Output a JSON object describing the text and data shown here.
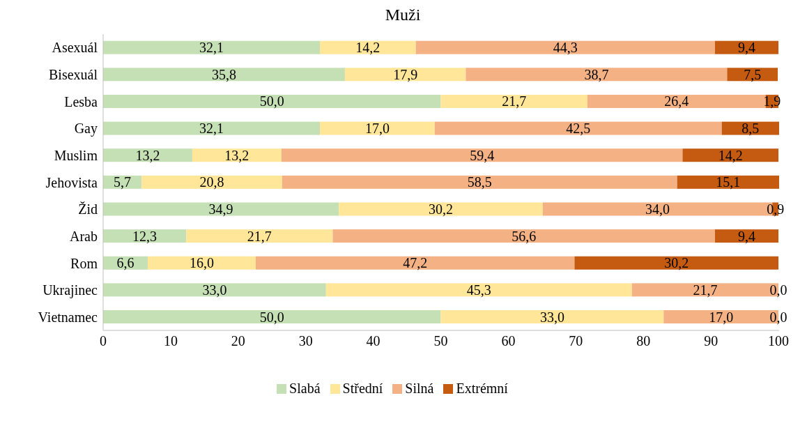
{
  "chart_data": {
    "type": "bar",
    "title": "Muži",
    "orientation": "horizontal",
    "stacked": true,
    "legend": "bottom",
    "categories": [
      "Asexuál",
      "Bisexuál",
      "Lesba",
      "Gay",
      "Muslim",
      "Jehovista",
      "Žid",
      "Arab",
      "Rom",
      "Ukrajinec",
      "Vietnamec"
    ],
    "xlim": [
      0,
      100
    ],
    "xticks": [
      0,
      10,
      20,
      30,
      40,
      50,
      60,
      70,
      80,
      90,
      100
    ],
    "series": [
      {
        "name": "Slabá",
        "color": "#c5e0b4",
        "values": [
          32.1,
          35.8,
          50.0,
          32.1,
          13.2,
          5.7,
          34.9,
          12.3,
          6.6,
          33.0,
          50.0
        ],
        "value_labels": [
          "32,1",
          "35,8",
          "50,0",
          "32,1",
          "13,2",
          "5,7",
          "34,9",
          "12,3",
          "6,6",
          "33,0",
          "50,0"
        ]
      },
      {
        "name": "Střední",
        "color": "#ffe699",
        "values": [
          14.2,
          17.9,
          21.7,
          17.0,
          13.2,
          20.8,
          30.2,
          21.7,
          16.0,
          45.3,
          33.0
        ],
        "value_labels": [
          "14,2",
          "17,9",
          "21,7",
          "17,0",
          "13,2",
          "20,8",
          "30,2",
          "21,7",
          "16,0",
          "45,3",
          "33,0"
        ]
      },
      {
        "name": "Silná",
        "color": "#f4b183",
        "values": [
          44.3,
          38.7,
          26.4,
          42.5,
          59.4,
          58.5,
          34.0,
          56.6,
          47.2,
          21.7,
          17.0
        ],
        "value_labels": [
          "44,3",
          "38,7",
          "26,4",
          "42,5",
          "59,4",
          "58,5",
          "34,0",
          "56,6",
          "47,2",
          "21,7",
          "17,0"
        ]
      },
      {
        "name": "Extrémní",
        "color": "#c55a11",
        "values": [
          9.4,
          7.5,
          1.9,
          8.5,
          14.2,
          15.1,
          0.9,
          9.4,
          30.2,
          0.0,
          0.0
        ],
        "value_labels": [
          "9,4",
          "7,5",
          "1,9",
          "8,5",
          "14,2",
          "15,1",
          "0,9",
          "9,4",
          "30,2",
          "0,0",
          "0,0"
        ]
      }
    ]
  }
}
